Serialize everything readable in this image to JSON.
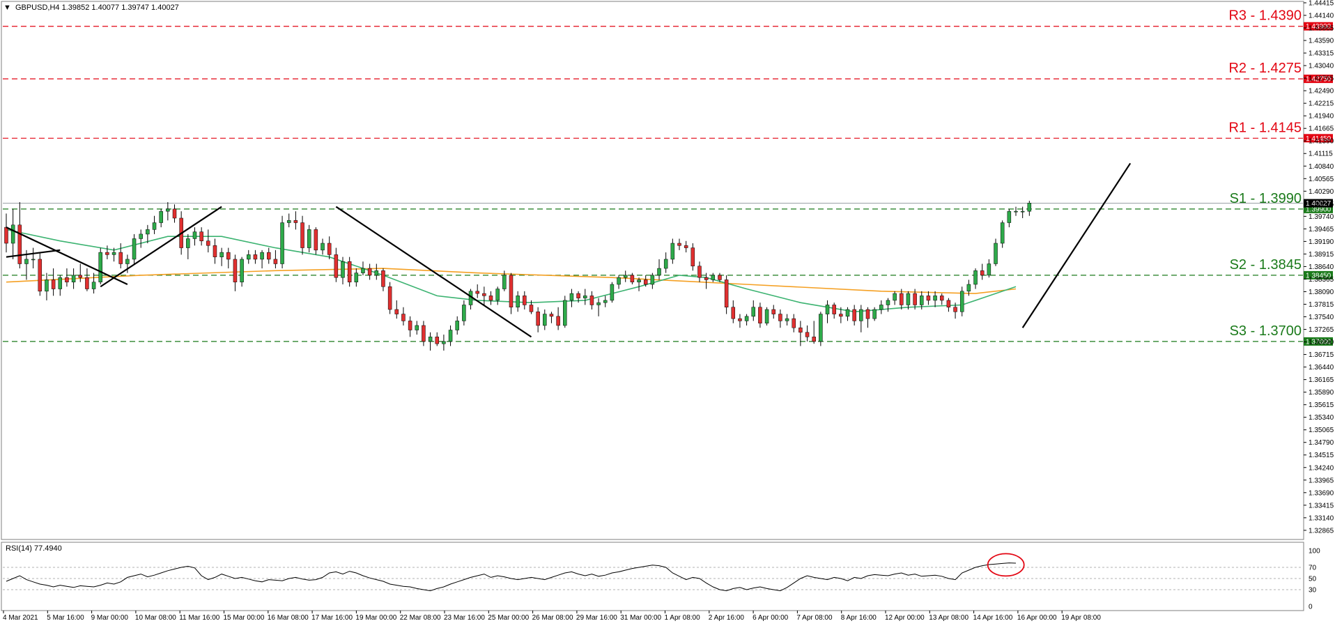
{
  "chart_data": {
    "type": "candlestick",
    "title": "GBPUSD,H4  1.39852 1.40077 1.39747 1.40027",
    "symbol": "GBPUSD",
    "timeframe": "H4",
    "ohlc_header": "1.39852 1.40077 1.39747 1.40027",
    "title_arrow": "▼",
    "ylim": [
      1.32695,
      1.44415
    ],
    "y_ticks": [
      "1.44415",
      "1.44140",
      "1.43865",
      "1.43590",
      "1.43315",
      "1.43040",
      "1.42765",
      "1.42490",
      "1.42215",
      "1.41940",
      "1.41665",
      "1.41390",
      "1.41115",
      "1.40840",
      "1.40565",
      "1.40290",
      "1.40015",
      "1.39740",
      "1.39465",
      "1.39190",
      "1.38915",
      "1.38640",
      "1.38365",
      "1.38090",
      "1.37815",
      "1.37540",
      "1.37265",
      "1.36990",
      "1.36715",
      "1.36440",
      "1.36165",
      "1.35890",
      "1.35615",
      "1.35340",
      "1.35065",
      "1.34790",
      "1.34515",
      "1.34240",
      "1.33965",
      "1.33690",
      "1.33415",
      "1.33140",
      "1.32865"
    ],
    "x_ticks": [
      "4 Mar 2021",
      "5 Mar 16:00",
      "9 Mar 00:00",
      "10 Mar 08:00",
      "11 Mar 16:00",
      "15 Mar 00:00",
      "16 Mar 08:00",
      "17 Mar 16:00",
      "19 Mar 00:00",
      "22 Mar 08:00",
      "23 Mar 16:00",
      "25 Mar 00:00",
      "26 Mar 08:00",
      "29 Mar 16:00",
      "31 Mar 00:00",
      "1 Apr 08:00",
      "2 Apr 16:00",
      "6 Apr 00:00",
      "7 Apr 08:00",
      "8 Apr 16:00",
      "12 Apr 00:00",
      "13 Apr 08:00",
      "14 Apr 16:00",
      "16 Apr 00:00",
      "19 Apr 08:00"
    ],
    "candles": [
      [
        1.395,
        1.398,
        1.3895,
        1.3915
      ],
      [
        1.3915,
        1.399,
        1.388,
        1.3955
      ],
      [
        1.3955,
        1.4005,
        1.386,
        1.387
      ],
      [
        1.387,
        1.39,
        1.3835,
        1.388
      ],
      [
        1.388,
        1.3905,
        1.386,
        1.388
      ],
      [
        1.388,
        1.3895,
        1.38,
        1.381
      ],
      [
        1.381,
        1.385,
        1.379,
        1.3835
      ],
      [
        1.3835,
        1.386,
        1.38,
        1.3815
      ],
      [
        1.3815,
        1.3845,
        1.38,
        1.384
      ],
      [
        1.384,
        1.386,
        1.382,
        1.383
      ],
      [
        1.383,
        1.386,
        1.3815,
        1.3845
      ],
      [
        1.3845,
        1.387,
        1.383,
        1.384
      ],
      [
        1.384,
        1.386,
        1.381,
        1.3815
      ],
      [
        1.3815,
        1.385,
        1.3805,
        1.383
      ],
      [
        1.383,
        1.3905,
        1.3825,
        1.3895
      ],
      [
        1.3895,
        1.391,
        1.388,
        1.389
      ],
      [
        1.389,
        1.3905,
        1.3875,
        1.3895
      ],
      [
        1.3895,
        1.3915,
        1.386,
        1.387
      ],
      [
        1.387,
        1.389,
        1.385,
        1.388
      ],
      [
        1.388,
        1.3935,
        1.387,
        1.3925
      ],
      [
        1.3925,
        1.3945,
        1.3905,
        1.3935
      ],
      [
        1.3935,
        1.3955,
        1.3915,
        1.3945
      ],
      [
        1.3945,
        1.3975,
        1.3935,
        1.396
      ],
      [
        1.396,
        1.399,
        1.395,
        1.3985
      ],
      [
        1.3985,
        1.4005,
        1.3965,
        1.399
      ],
      [
        1.399,
        1.4,
        1.396,
        1.397
      ],
      [
        1.397,
        1.3985,
        1.389,
        1.3905
      ],
      [
        1.3905,
        1.3935,
        1.388,
        1.3925
      ],
      [
        1.3925,
        1.395,
        1.391,
        1.394
      ],
      [
        1.394,
        1.395,
        1.391,
        1.392
      ],
      [
        1.392,
        1.3945,
        1.3895,
        1.391
      ],
      [
        1.391,
        1.3925,
        1.387,
        1.3885
      ],
      [
        1.3885,
        1.3905,
        1.3865,
        1.3895
      ],
      [
        1.3895,
        1.3905,
        1.386,
        1.388
      ],
      [
        1.388,
        1.389,
        1.381,
        1.383
      ],
      [
        1.383,
        1.3885,
        1.382,
        1.388
      ],
      [
        1.388,
        1.39,
        1.387,
        1.389
      ],
      [
        1.389,
        1.39,
        1.387,
        1.388
      ],
      [
        1.388,
        1.39,
        1.386,
        1.3895
      ],
      [
        1.3895,
        1.3905,
        1.387,
        1.388
      ],
      [
        1.388,
        1.39,
        1.386,
        1.387
      ],
      [
        1.387,
        1.3975,
        1.386,
        1.396
      ],
      [
        1.396,
        1.398,
        1.395,
        1.3965
      ],
      [
        1.3965,
        1.3985,
        1.3945,
        1.396
      ],
      [
        1.396,
        1.3975,
        1.389,
        1.3905
      ],
      [
        1.3905,
        1.3955,
        1.3895,
        1.3945
      ],
      [
        1.3945,
        1.395,
        1.389,
        1.39
      ],
      [
        1.39,
        1.3925,
        1.389,
        1.3915
      ],
      [
        1.3915,
        1.393,
        1.388,
        1.389
      ],
      [
        1.389,
        1.3905,
        1.383,
        1.384
      ],
      [
        1.384,
        1.3885,
        1.3825,
        1.3875
      ],
      [
        1.3875,
        1.3885,
        1.382,
        1.383
      ],
      [
        1.383,
        1.386,
        1.382,
        1.385
      ],
      [
        1.385,
        1.3875,
        1.3845,
        1.386
      ],
      [
        1.386,
        1.387,
        1.3835,
        1.3845
      ],
      [
        1.3845,
        1.387,
        1.3835,
        1.3855
      ],
      [
        1.3855,
        1.386,
        1.381,
        1.382
      ],
      [
        1.382,
        1.383,
        1.376,
        1.377
      ],
      [
        1.377,
        1.379,
        1.375,
        1.376
      ],
      [
        1.376,
        1.3775,
        1.3735,
        1.3745
      ],
      [
        1.3745,
        1.3755,
        1.371,
        1.3725
      ],
      [
        1.3725,
        1.3745,
        1.3715,
        1.3735
      ],
      [
        1.3735,
        1.3745,
        1.369,
        1.37
      ],
      [
        1.37,
        1.372,
        1.368,
        1.371
      ],
      [
        1.371,
        1.372,
        1.369,
        1.3695
      ],
      [
        1.3695,
        1.3715,
        1.368,
        1.37
      ],
      [
        1.37,
        1.3735,
        1.369,
        1.3725
      ],
      [
        1.3725,
        1.3755,
        1.3715,
        1.3745
      ],
      [
        1.3745,
        1.379,
        1.3735,
        1.378
      ],
      [
        1.378,
        1.3815,
        1.377,
        1.381
      ],
      [
        1.381,
        1.3825,
        1.3795,
        1.3805
      ],
      [
        1.3805,
        1.382,
        1.378,
        1.38
      ],
      [
        1.38,
        1.381,
        1.378,
        1.379
      ],
      [
        1.379,
        1.382,
        1.378,
        1.3815
      ],
      [
        1.3815,
        1.3855,
        1.381,
        1.3845
      ],
      [
        1.3845,
        1.385,
        1.376,
        1.3775
      ],
      [
        1.3775,
        1.381,
        1.3765,
        1.38
      ],
      [
        1.38,
        1.381,
        1.377,
        1.378
      ],
      [
        1.378,
        1.379,
        1.376,
        1.3765
      ],
      [
        1.3765,
        1.3775,
        1.372,
        1.3735
      ],
      [
        1.3735,
        1.377,
        1.3725,
        1.376
      ],
      [
        1.376,
        1.3765,
        1.374,
        1.3755
      ],
      [
        1.3755,
        1.3775,
        1.3725,
        1.3735
      ],
      [
        1.3735,
        1.38,
        1.373,
        1.379
      ],
      [
        1.379,
        1.3815,
        1.3775,
        1.3805
      ],
      [
        1.3805,
        1.381,
        1.3785,
        1.3795
      ],
      [
        1.3795,
        1.3815,
        1.378,
        1.38
      ],
      [
        1.38,
        1.381,
        1.377,
        1.378
      ],
      [
        1.378,
        1.3795,
        1.3755,
        1.3785
      ],
      [
        1.3785,
        1.38,
        1.3775,
        1.379
      ],
      [
        1.379,
        1.383,
        1.3785,
        1.3825
      ],
      [
        1.3825,
        1.3845,
        1.3815,
        1.384
      ],
      [
        1.384,
        1.3855,
        1.383,
        1.3845
      ],
      [
        1.3845,
        1.385,
        1.3825,
        1.383
      ],
      [
        1.383,
        1.384,
        1.381,
        1.3835
      ],
      [
        1.3835,
        1.3845,
        1.382,
        1.3825
      ],
      [
        1.3825,
        1.385,
        1.3815,
        1.3845
      ],
      [
        1.3845,
        1.388,
        1.3835,
        1.386
      ],
      [
        1.386,
        1.3895,
        1.385,
        1.388
      ],
      [
        1.388,
        1.3925,
        1.387,
        1.3915
      ],
      [
        1.3915,
        1.3925,
        1.39,
        1.391
      ],
      [
        1.391,
        1.392,
        1.3895,
        1.3905
      ],
      [
        1.3905,
        1.3915,
        1.3855,
        1.3865
      ],
      [
        1.3865,
        1.3875,
        1.383,
        1.384
      ],
      [
        1.384,
        1.385,
        1.3815,
        1.3835
      ],
      [
        1.3835,
        1.385,
        1.383,
        1.3845
      ],
      [
        1.3845,
        1.385,
        1.383,
        1.3835
      ],
      [
        1.3835,
        1.3845,
        1.376,
        1.3775
      ],
      [
        1.3775,
        1.379,
        1.374,
        1.375
      ],
      [
        1.375,
        1.376,
        1.373,
        1.3745
      ],
      [
        1.3745,
        1.376,
        1.3735,
        1.3755
      ],
      [
        1.3755,
        1.379,
        1.3745,
        1.3775
      ],
      [
        1.3775,
        1.3785,
        1.373,
        1.374
      ],
      [
        1.374,
        1.3775,
        1.3735,
        1.377
      ],
      [
        1.377,
        1.378,
        1.375,
        1.376
      ],
      [
        1.376,
        1.377,
        1.373,
        1.3745
      ],
      [
        1.3745,
        1.376,
        1.3735,
        1.375
      ],
      [
        1.375,
        1.376,
        1.372,
        1.373
      ],
      [
        1.373,
        1.3745,
        1.369,
        1.372
      ],
      [
        1.372,
        1.3735,
        1.37,
        1.371
      ],
      [
        1.371,
        1.3745,
        1.3695,
        1.37
      ],
      [
        1.37,
        1.3765,
        1.369,
        1.376
      ],
      [
        1.376,
        1.379,
        1.374,
        1.378
      ],
      [
        1.378,
        1.3785,
        1.375,
        1.376
      ],
      [
        1.376,
        1.3775,
        1.374,
        1.3755
      ],
      [
        1.3755,
        1.3775,
        1.3745,
        1.377
      ],
      [
        1.377,
        1.378,
        1.3735,
        1.3745
      ],
      [
        1.3745,
        1.378,
        1.372,
        1.377
      ],
      [
        1.377,
        1.3775,
        1.373,
        1.375
      ],
      [
        1.375,
        1.3775,
        1.3745,
        1.377
      ],
      [
        1.377,
        1.379,
        1.376,
        1.378
      ],
      [
        1.378,
        1.3795,
        1.3765,
        1.379
      ],
      [
        1.379,
        1.381,
        1.378,
        1.3805
      ],
      [
        1.3805,
        1.3815,
        1.377,
        1.378
      ],
      [
        1.378,
        1.381,
        1.377,
        1.3805
      ],
      [
        1.3805,
        1.3815,
        1.377,
        1.378
      ],
      [
        1.378,
        1.381,
        1.377,
        1.38
      ],
      [
        1.38,
        1.381,
        1.378,
        1.379
      ],
      [
        1.379,
        1.381,
        1.3775,
        1.38
      ],
      [
        1.38,
        1.3805,
        1.378,
        1.379
      ],
      [
        1.379,
        1.3795,
        1.3765,
        1.3775
      ],
      [
        1.3775,
        1.3785,
        1.375,
        1.3765
      ],
      [
        1.3765,
        1.382,
        1.3755,
        1.381
      ],
      [
        1.381,
        1.3835,
        1.38,
        1.3825
      ],
      [
        1.3825,
        1.386,
        1.3815,
        1.3855
      ],
      [
        1.3855,
        1.387,
        1.3835,
        1.3845
      ],
      [
        1.3845,
        1.388,
        1.384,
        1.387
      ],
      [
        1.387,
        1.3925,
        1.3865,
        1.3915
      ],
      [
        1.3915,
        1.3965,
        1.3905,
        1.396
      ],
      [
        1.396,
        1.399,
        1.395,
        1.3985
      ],
      [
        1.3985,
        1.3995,
        1.3975,
        1.3985
      ],
      [
        1.3985,
        1.3995,
        1.397,
        1.3985
      ],
      [
        1.3985,
        1.4008,
        1.3975,
        1.4003
      ]
    ],
    "ma_green": {
      "name": "",
      "color": "#3cb371",
      "points": [
        [
          0,
          1.3945
        ],
        [
          8,
          1.392
        ],
        [
          16,
          1.39
        ],
        [
          24,
          1.393
        ],
        [
          32,
          1.393
        ],
        [
          40,
          1.3905
        ],
        [
          48,
          1.3885
        ],
        [
          56,
          1.3845
        ],
        [
          64,
          1.38
        ],
        [
          70,
          1.379
        ],
        [
          78,
          1.3785
        ],
        [
          86,
          1.379
        ],
        [
          94,
          1.382
        ],
        [
          100,
          1.3845
        ],
        [
          104,
          1.384
        ],
        [
          110,
          1.3815
        ],
        [
          118,
          1.3785
        ],
        [
          126,
          1.3765
        ],
        [
          134,
          1.3775
        ],
        [
          142,
          1.378
        ],
        [
          146,
          1.38
        ],
        [
          150,
          1.382
        ]
      ]
    },
    "ma_orange": {
      "name": "",
      "color": "#f5a023",
      "points": [
        [
          0,
          1.383
        ],
        [
          20,
          1.3845
        ],
        [
          40,
          1.3855
        ],
        [
          56,
          1.386
        ],
        [
          70,
          1.385
        ],
        [
          90,
          1.384
        ],
        [
          110,
          1.3825
        ],
        [
          130,
          1.381
        ],
        [
          144,
          1.3805
        ],
        [
          150,
          1.3815
        ]
      ]
    },
    "trendlines": [
      {
        "from": [
          0,
          1.395
        ],
        "to": [
          18,
          1.3825
        ]
      },
      {
        "from": [
          0,
          1.3885
        ],
        "to": [
          8,
          1.39
        ]
      },
      {
        "from": [
          14,
          1.382
        ],
        "to": [
          32,
          1.3995
        ]
      },
      {
        "from": [
          49,
          1.3995
        ],
        "to": [
          78,
          1.371
        ]
      },
      {
        "from": [
          151,
          1.373
        ],
        "to": [
          167,
          1.409
        ]
      }
    ],
    "last_price_line": {
      "value": 1.40027,
      "label": "1.40027"
    },
    "levels": [
      {
        "name": "R3",
        "value": 1.439,
        "label": "R3 - 1.4390",
        "axis_label": "1.43900",
        "color": "#e30613"
      },
      {
        "name": "R2",
        "value": 1.4275,
        "label": "R2 - 1.4275",
        "axis_label": "1.42750",
        "color": "#e30613"
      },
      {
        "name": "R1",
        "value": 1.4145,
        "label": "R1 - 1.4145",
        "axis_label": "1.41450",
        "color": "#e30613"
      },
      {
        "name": "S1",
        "value": 1.399,
        "label": "S1 - 1.3990",
        "axis_label": "1.39900",
        "color": "#1a7a1a"
      },
      {
        "name": "S2",
        "value": 1.3845,
        "label": "S2 - 1.3845",
        "axis_label": "1.38450",
        "color": "#1a7a1a"
      },
      {
        "name": "S3",
        "value": 1.37,
        "label": "S3 - 1.3700",
        "axis_label": "1.37000",
        "color": "#1a7a1a"
      }
    ],
    "colors": {
      "bull": "#2eaa4a",
      "bear": "#e03030",
      "wick": "#000000",
      "grid": "#cccccc"
    },
    "rsi": {
      "title": "RSI(14) 77.4940",
      "ylim": [
        0,
        100
      ],
      "ticks": [
        "100",
        "70",
        "50",
        "30",
        "0"
      ],
      "levels": [
        70,
        50,
        30
      ],
      "values": [
        45,
        50,
        55,
        48,
        44,
        40,
        38,
        35,
        38,
        36,
        34,
        37,
        36,
        35,
        38,
        42,
        40,
        44,
        52,
        55,
        58,
        53,
        56,
        60,
        64,
        67,
        70,
        72,
        69,
        55,
        48,
        52,
        58,
        54,
        50,
        52,
        49,
        46,
        44,
        48,
        47,
        46,
        50,
        52,
        49,
        47,
        48,
        52,
        60,
        62,
        58,
        63,
        60,
        55,
        51,
        48,
        45,
        40,
        38,
        36,
        35,
        32,
        30,
        28,
        32,
        35,
        40,
        44,
        48,
        52,
        55,
        58,
        52,
        55,
        53,
        50,
        48,
        50,
        52,
        50,
        48,
        52,
        56,
        60,
        62,
        58,
        55,
        58,
        54,
        56,
        60,
        62,
        65,
        68,
        70,
        72,
        74,
        73,
        70,
        60,
        54,
        48,
        52,
        50,
        42,
        35,
        30,
        28,
        32,
        34,
        30,
        33,
        35,
        32,
        30,
        28,
        34,
        42,
        50,
        55,
        52,
        50,
        48,
        52,
        50,
        46,
        52,
        50,
        55,
        57,
        56,
        55,
        58,
        60,
        56,
        58,
        54,
        55,
        56,
        54,
        50,
        48,
        60,
        65,
        70,
        73,
        75,
        76,
        77,
        78,
        77.5
      ],
      "highlight_ellipse": true
    }
  }
}
